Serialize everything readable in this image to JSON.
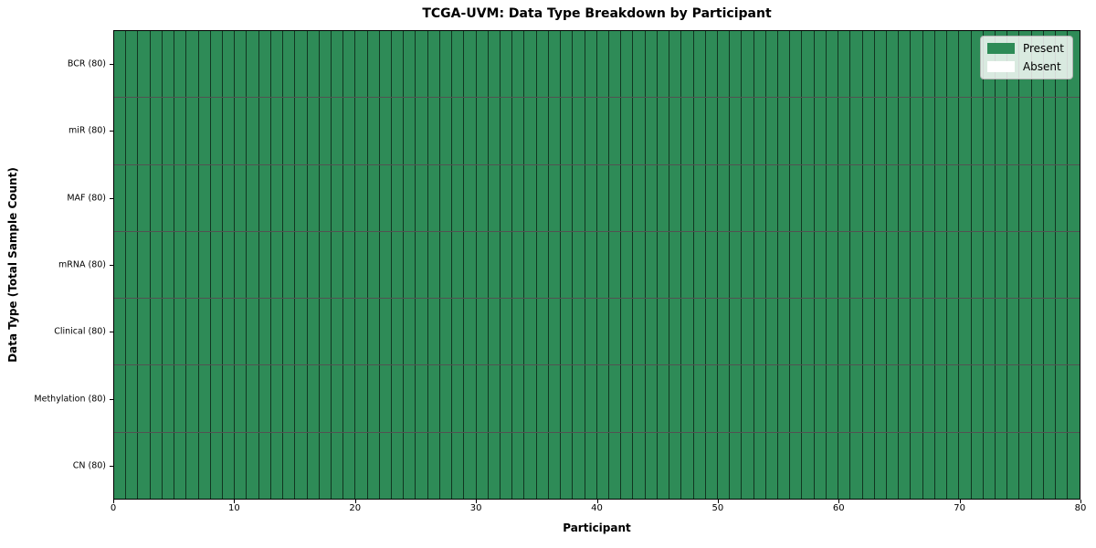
{
  "chart_data": {
    "type": "heatmap",
    "title": "TCGA-UVM: Data Type Breakdown by Participant",
    "xlabel": "Participant",
    "ylabel": "Data Type (Total Sample Count)",
    "n_participants": 80,
    "xlim": [
      0,
      80
    ],
    "x_ticks": [
      0,
      10,
      20,
      30,
      40,
      50,
      60,
      70,
      80
    ],
    "rows": [
      {
        "label": "BCR (80)",
        "present_count": 80,
        "total": 80
      },
      {
        "label": "miR (80)",
        "present_count": 80,
        "total": 80
      },
      {
        "label": "MAF (80)",
        "present_count": 80,
        "total": 80
      },
      {
        "label": "mRNA (80)",
        "present_count": 80,
        "total": 80
      },
      {
        "label": "Clinical (80)",
        "present_count": 80,
        "total": 80
      },
      {
        "label": "Methylation (80)",
        "present_count": 80,
        "total": 80
      },
      {
        "label": "CN (80)",
        "present_count": 80,
        "total": 80
      }
    ],
    "legend": [
      {
        "label": "Present",
        "color": "#2e8b57"
      },
      {
        "label": "Absent",
        "color": "#ffffff"
      }
    ],
    "colors": {
      "present": "#2e8b57",
      "absent": "#ffffff",
      "cell_border": "rgba(0,0,0,0.62)",
      "spine": "#000000"
    },
    "legend_position": "upper right",
    "grid": "cell-borders"
  }
}
